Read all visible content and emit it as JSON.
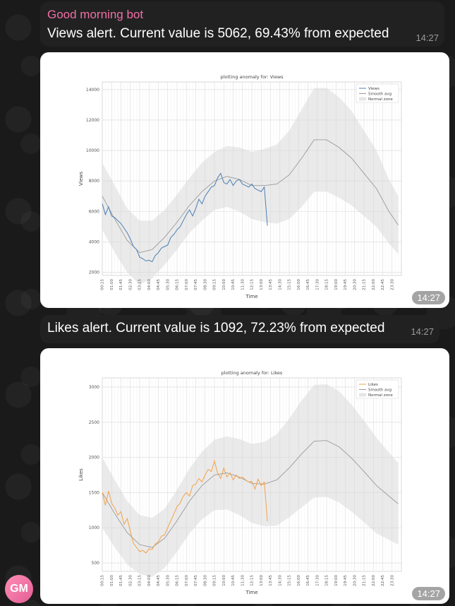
{
  "messages": {
    "first": {
      "sender": "Good morning bot",
      "text": "Views alert. Current value is 5062, 69.43% from expected",
      "time": "14:27"
    },
    "photo1_time": "14:27",
    "second": {
      "text": "Likes alert. Current value is 1092, 72.23% from expected",
      "time": "14:27"
    },
    "photo2_time": "14:27"
  },
  "avatar": {
    "initials": "GM",
    "color": "#ec6ea0"
  },
  "colors": {
    "views": "#4a7fb5",
    "likes": "#f4a24a",
    "smooth": "#9a9a9a",
    "band": "#e6e6e6",
    "sender": "#f06fa5"
  },
  "chart_data": [
    {
      "type": "line",
      "title": "plotting anomaly for: Views",
      "xlabel": "Time",
      "ylabel": "Views",
      "ylim": [
        1800,
        14500
      ],
      "yticks": [
        2000,
        4000,
        6000,
        8000,
        10000,
        12000,
        14000
      ],
      "xlim": [
        0,
        96
      ],
      "xtick_labels": [
        "00:15",
        "01:00",
        "01:45",
        "02:30",
        "03:15",
        "04:00",
        "04:45",
        "05:30",
        "06:15",
        "07:00",
        "07:45",
        "08:30",
        "09:15",
        "10:00",
        "10:45",
        "11:30",
        "12:15",
        "13:00",
        "13:45",
        "14:30",
        "15:15",
        "16:00",
        "16:45",
        "17:30",
        "18:15",
        "19:00",
        "19:45",
        "20:30",
        "21:15",
        "22:00",
        "22:45",
        "23:30"
      ],
      "legend": [
        "Views",
        "Smooth avg",
        "Normal zone"
      ],
      "legend_position": "top-right",
      "grid": true,
      "smooth_x": [
        0,
        4,
        8,
        12,
        16,
        20,
        24,
        28,
        32,
        36,
        40,
        44,
        48,
        52,
        56,
        60,
        64,
        68,
        72,
        76,
        80,
        84,
        88,
        92,
        95
      ],
      "smooth_y": [
        7000,
        5500,
        4100,
        3300,
        3500,
        4300,
        5300,
        6400,
        7300,
        8000,
        8300,
        8100,
        7700,
        7700,
        7800,
        8400,
        9500,
        10700,
        10700,
        10200,
        9500,
        8500,
        7500,
        6000,
        5100
      ],
      "band_half": [
        2200,
        2200,
        2100,
        2100,
        1900,
        1800,
        1800,
        1800,
        1900,
        1900,
        2000,
        2100,
        2200,
        2400,
        2600,
        2900,
        3200,
        3400,
        3400,
        3300,
        3100,
        2800,
        2500,
        2100,
        1900
      ],
      "series": [
        {
          "name": "Views",
          "x": [
            0,
            1,
            2,
            3,
            4,
            5,
            6,
            7,
            8,
            9,
            10,
            11,
            12,
            13,
            14,
            15,
            16,
            17,
            18,
            19,
            20,
            21,
            22,
            23,
            24,
            25,
            26,
            27,
            28,
            29,
            30,
            31,
            32,
            33,
            34,
            35,
            36,
            37,
            38,
            39,
            40,
            41,
            42,
            43,
            44,
            45,
            46,
            47,
            48,
            49,
            50,
            51,
            52,
            53
          ],
          "values": [
            6500,
            5800,
            6300,
            5700,
            5600,
            5400,
            5200,
            4900,
            4600,
            4200,
            3700,
            3500,
            3000,
            2900,
            2750,
            2800,
            2700,
            3100,
            3300,
            3600,
            3700,
            3800,
            4300,
            4500,
            4800,
            5000,
            5400,
            5800,
            6100,
            5700,
            6200,
            6800,
            6500,
            7000,
            7300,
            7600,
            7700,
            8200,
            8500,
            7900,
            7800,
            8100,
            7700,
            8000,
            8100,
            7800,
            7700,
            7600,
            7800,
            7500,
            7400,
            7300,
            7600,
            5062
          ]
        }
      ]
    },
    {
      "type": "line",
      "title": "plotting anomaly for: Likes",
      "xlabel": "Time",
      "ylabel": "Likes",
      "ylim": [
        380,
        3130
      ],
      "yticks": [
        500,
        1000,
        1500,
        2000,
        2500,
        3000
      ],
      "xlim": [
        0,
        96
      ],
      "xtick_labels": [
        "00:15",
        "01:00",
        "01:45",
        "02:30",
        "03:15",
        "04:00",
        "04:45",
        "05:30",
        "06:15",
        "07:00",
        "07:45",
        "08:30",
        "09:15",
        "10:00",
        "10:45",
        "11:30",
        "12:15",
        "13:00",
        "13:45",
        "14:30",
        "15:15",
        "16:00",
        "16:45",
        "17:30",
        "18:15",
        "19:00",
        "19:45",
        "20:30",
        "21:15",
        "22:00",
        "22:45",
        "23:30"
      ],
      "legend": [
        "Likes",
        "Smooth avg",
        "Normal zone"
      ],
      "legend_position": "top-right",
      "grid": true,
      "smooth_x": [
        0,
        4,
        8,
        12,
        16,
        20,
        24,
        28,
        32,
        36,
        40,
        44,
        48,
        52,
        56,
        60,
        64,
        68,
        72,
        76,
        80,
        84,
        88,
        92,
        95
      ],
      "smooth_y": [
        1500,
        1200,
        930,
        760,
        720,
        850,
        1100,
        1380,
        1600,
        1750,
        1780,
        1720,
        1630,
        1620,
        1680,
        1850,
        2050,
        2230,
        2240,
        2150,
        1990,
        1800,
        1600,
        1450,
        1340
      ],
      "band_half": [
        500,
        480,
        450,
        420,
        420,
        420,
        440,
        460,
        480,
        500,
        520,
        540,
        560,
        600,
        650,
        700,
        760,
        800,
        800,
        790,
        760,
        720,
        680,
        620,
        580
      ],
      "series": [
        {
          "name": "Likes",
          "x": [
            0,
            1,
            2,
            3,
            4,
            5,
            6,
            7,
            8,
            9,
            10,
            11,
            12,
            13,
            14,
            15,
            16,
            17,
            18,
            19,
            20,
            21,
            22,
            23,
            24,
            25,
            26,
            27,
            28,
            29,
            30,
            31,
            32,
            33,
            34,
            35,
            36,
            37,
            38,
            39,
            40,
            41,
            42,
            43,
            44,
            45,
            46,
            47,
            48,
            49,
            50,
            51,
            52,
            53
          ],
          "values": [
            1500,
            1320,
            1520,
            1350,
            1280,
            1180,
            1230,
            1050,
            1130,
            950,
            780,
            720,
            660,
            680,
            640,
            700,
            690,
            770,
            800,
            880,
            900,
            1000,
            1100,
            1200,
            1300,
            1350,
            1450,
            1500,
            1450,
            1600,
            1620,
            1700,
            1650,
            1750,
            1830,
            1800,
            1950,
            1780,
            1700,
            1850,
            1720,
            1780,
            1680,
            1750,
            1700,
            1720,
            1680,
            1650,
            1660,
            1550,
            1690,
            1600,
            1650,
            1092
          ]
        }
      ]
    }
  ]
}
